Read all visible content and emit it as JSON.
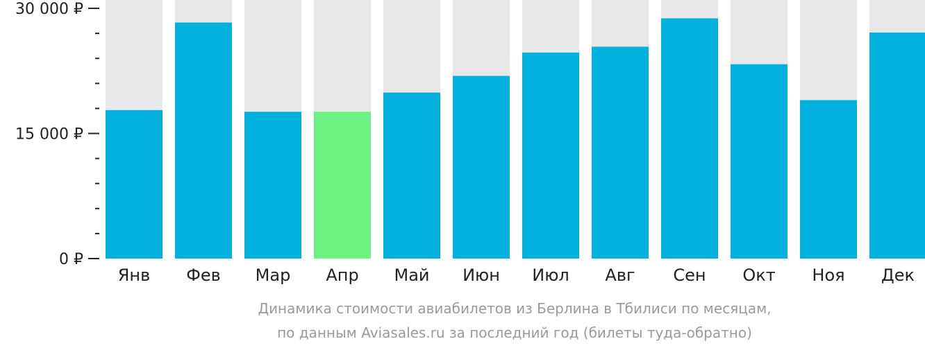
{
  "chart_data": {
    "type": "bar",
    "title": "",
    "xlabel": "",
    "ylabel": "",
    "categories": [
      "Янв",
      "Фев",
      "Мар",
      "Апр",
      "Май",
      "Июн",
      "Июл",
      "Авг",
      "Сен",
      "Окт",
      "Ноя",
      "Дек"
    ],
    "values": [
      17800,
      28300,
      17600,
      17600,
      19900,
      21900,
      24700,
      25400,
      28800,
      23300,
      19000,
      27100
    ],
    "highlight_index": 3,
    "ylim": [
      0,
      31000
    ],
    "yticks": [
      {
        "value": 0,
        "label": "0 ₽"
      },
      {
        "value": 15000,
        "label": "15 000 ₽"
      },
      {
        "value": 30000,
        "label": "30 000 ₽"
      }
    ],
    "minor_tick_step": 3000,
    "grid": false,
    "legend": "none",
    "colors": {
      "bar": "#02b1dd",
      "highlight": "#6cf183",
      "track": "#e8e8e8",
      "axis": "#222222"
    }
  },
  "caption": {
    "line1": "Динамика стоимости авиабилетов из Берлина в Тбилиси по месяцам,",
    "line2": "по данным Aviasales.ru за последний год (билеты туда-обратно)"
  }
}
